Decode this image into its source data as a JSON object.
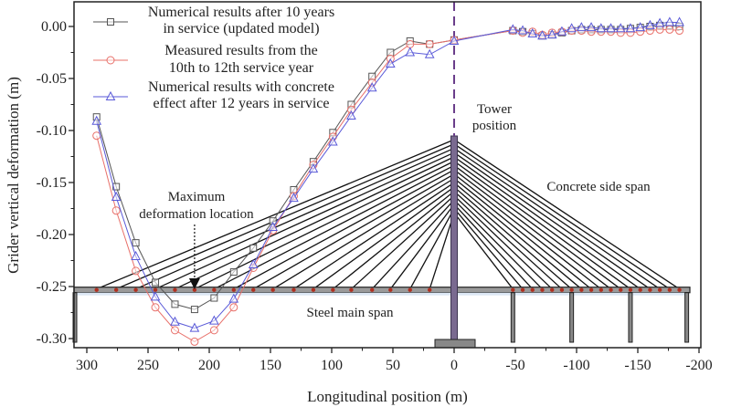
{
  "chart_data": {
    "type": "line",
    "title": "",
    "xlabel": "Longitudinal position (m)",
    "ylabel": "Grider vertical deformation (m)",
    "xlim": [
      310,
      -200
    ],
    "ylim": [
      -0.31,
      0.02
    ],
    "x_ticks": [
      300,
      250,
      200,
      150,
      100,
      50,
      0,
      -50,
      -100,
      -150,
      -200
    ],
    "x_tick_labels": [
      "300",
      "250",
      "200",
      "150",
      "100",
      "50",
      "0",
      "-50",
      "-100",
      "-150",
      "-200"
    ],
    "y_ticks": [
      0.0,
      -0.05,
      -0.1,
      -0.15,
      -0.2,
      -0.25,
      -0.3
    ],
    "y_tick_labels": [
      "0.00",
      "-0.05",
      "-0.10",
      "-0.15",
      "-0.20",
      "-0.25",
      "-0.30"
    ],
    "grid": false,
    "legend_position": "top-left",
    "series": [
      {
        "name": "Numerical results after 10 years in service (updated model)",
        "legend_lines": [
          "Numerical results after 10 years",
          "in service (updated model)"
        ],
        "marker": "square",
        "color": "#555555",
        "x": [
          292,
          276,
          260,
          244,
          228,
          212,
          196,
          180,
          164,
          148,
          131,
          115,
          99,
          84,
          67,
          52,
          36,
          20,
          0,
          -48,
          -56,
          -64,
          -72,
          -80,
          -88,
          -96,
          -104,
          -112,
          -120,
          -128,
          -136,
          -144,
          -152,
          -160,
          -168,
          -176,
          -184
        ],
        "y": [
          -0.087,
          -0.154,
          -0.208,
          -0.246,
          -0.267,
          -0.272,
          -0.261,
          -0.236,
          -0.213,
          -0.187,
          -0.157,
          -0.13,
          -0.102,
          -0.075,
          -0.048,
          -0.025,
          -0.014,
          -0.017,
          -0.013,
          -0.004,
          -0.005,
          -0.007,
          -0.009,
          -0.008,
          -0.006,
          -0.004,
          -0.003,
          -0.003,
          -0.003,
          -0.003,
          -0.003,
          -0.002,
          -0.001,
          0.0,
          0.001,
          0.001,
          0.0
        ]
      },
      {
        "name": "Measured results from the 10th to 12th service year",
        "legend_lines": [
          "Measured results from the",
          "10th to 12th service year"
        ],
        "marker": "circle",
        "color": "#e8706a",
        "x": [
          292,
          276,
          260,
          244,
          228,
          212,
          196,
          180,
          164,
          148,
          131,
          115,
          99,
          84,
          67,
          52,
          36,
          20,
          0,
          -48,
          -56,
          -64,
          -72,
          -80,
          -88,
          -96,
          -104,
          -112,
          -120,
          -128,
          -136,
          -144,
          -152,
          -160,
          -168,
          -176,
          -184
        ],
        "y": [
          -0.105,
          -0.177,
          -0.235,
          -0.27,
          -0.292,
          -0.303,
          -0.292,
          -0.27,
          -0.232,
          -0.196,
          -0.163,
          -0.133,
          -0.106,
          -0.08,
          -0.054,
          -0.031,
          -0.017,
          -0.017,
          -0.013,
          -0.004,
          -0.006,
          -0.005,
          -0.008,
          -0.006,
          -0.005,
          -0.004,
          -0.004,
          -0.005,
          -0.005,
          -0.005,
          -0.006,
          -0.006,
          -0.005,
          -0.004,
          -0.003,
          -0.003,
          -0.004
        ]
      },
      {
        "name": "Numerical results with concrete effect after 12 years in service",
        "legend_lines": [
          "Numerical results with concrete",
          "effect after 12 years in service"
        ],
        "marker": "triangle",
        "color": "#5a5ad8",
        "x": [
          292,
          276,
          260,
          244,
          228,
          212,
          196,
          180,
          164,
          148,
          131,
          115,
          99,
          84,
          67,
          52,
          36,
          20,
          0,
          -48,
          -56,
          -64,
          -72,
          -80,
          -88,
          -96,
          -104,
          -112,
          -120,
          -128,
          -136,
          -144,
          -152,
          -160,
          -168,
          -176,
          -184
        ],
        "y": [
          -0.091,
          -0.164,
          -0.221,
          -0.26,
          -0.284,
          -0.29,
          -0.283,
          -0.262,
          -0.229,
          -0.193,
          -0.165,
          -0.137,
          -0.111,
          -0.086,
          -0.059,
          -0.036,
          -0.025,
          -0.027,
          -0.014,
          -0.003,
          -0.004,
          -0.007,
          -0.009,
          -0.008,
          -0.005,
          -0.002,
          -0.001,
          -0.001,
          -0.002,
          -0.002,
          -0.002,
          -0.002,
          -0.001,
          0.001,
          0.003,
          0.004,
          0.004
        ]
      }
    ],
    "annotations": {
      "tower_position": "Tower position",
      "tower_line_1": "Tower",
      "tower_line_2": "position",
      "max_deformation_1": "Maximum",
      "max_deformation_2": "deformation location",
      "concrete_side_span": "Concrete side span",
      "steel_main_span": "Steel main span",
      "tower_x": 0,
      "max_deformation_x": 212
    },
    "bridge_diagram": {
      "main_span_anchor_x": [
        292,
        276,
        260,
        244,
        228,
        212,
        196,
        180,
        164,
        148,
        131,
        115,
        99,
        84,
        67,
        52,
        36,
        20
      ],
      "side_span_anchor_x": [
        -48,
        -56,
        -64,
        -72,
        -80,
        -88,
        -96,
        -104,
        -112,
        -120,
        -128,
        -136,
        -144,
        -152,
        -160,
        -168,
        -176,
        -184
      ],
      "pier_x": [
        310,
        -48,
        -96,
        -144,
        -190
      ],
      "deck_level": -0.255
    }
  }
}
